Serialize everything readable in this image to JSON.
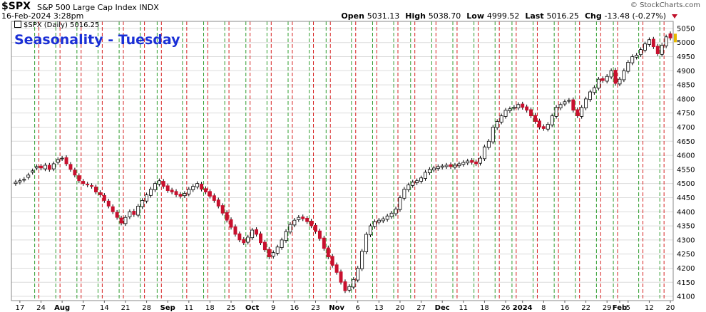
{
  "header": {
    "symbol": "$SPX",
    "full_name": "S&P 500 Large Cap Index  INDX",
    "datetime": "16-Feb-2024 3:28pm",
    "copyright": "© StockCharts.com",
    "ohlc": [
      {
        "label": "Open",
        "value": "5031.13"
      },
      {
        "label": "High",
        "value": "5038.70"
      },
      {
        "label": "Low",
        "value": "4999.52"
      },
      {
        "label": "Last",
        "value": "5016.25"
      },
      {
        "label": "Chg",
        "value": "-13.48 (-0.27%)"
      }
    ],
    "legend": "$SPX (Daily) 5016.25",
    "annotation": "Seasonality - Tuesday"
  },
  "colors": {
    "up_candle": "#ffffff",
    "down_candle": "#c8102e",
    "wick": "#000000",
    "green_line": "#2e9c2e",
    "red_line": "#d62020",
    "grid": "#dcdcdc",
    "annotation": "#1a2fd6"
  },
  "chart_data": {
    "type": "candlestick",
    "y_axis": {
      "position": "right",
      "range": [
        4085,
        5075
      ],
      "ticks": [
        4100,
        4150,
        4200,
        4250,
        4300,
        4350,
        4400,
        4450,
        4500,
        4550,
        4600,
        4650,
        4700,
        4750,
        4800,
        4850,
        4900,
        4950,
        5000,
        5050
      ]
    },
    "x_tick_labels": [
      "17",
      "24",
      "Aug",
      "7",
      "14",
      "21",
      "28",
      "Sep",
      "11",
      "18",
      "25",
      "Oct",
      "9",
      "16",
      "23",
      "Nov",
      "6",
      "13",
      "20",
      "27",
      "Dec",
      "11",
      "18",
      "26",
      "2024",
      "8",
      "16",
      "22",
      "29",
      "Feb",
      "5",
      "12",
      "20"
    ],
    "x_tick_bar_index": [
      1,
      6,
      11,
      16,
      21,
      26,
      31,
      36,
      41,
      46,
      51,
      56,
      61,
      66,
      71,
      76,
      81,
      86,
      91,
      96,
      101,
      106,
      111,
      116,
      120,
      125,
      130,
      135,
      140,
      143,
      145,
      150,
      155
    ],
    "vertical_lines": {
      "green_before_bar_index": [
        5,
        10,
        15,
        20,
        25,
        30,
        34,
        40,
        45,
        50,
        55,
        60,
        65,
        70,
        74,
        80,
        85,
        90,
        94,
        99,
        104,
        109,
        114,
        118,
        123,
        128,
        133,
        138,
        142,
        148,
        153
      ],
      "red_after_bar_index": [
        5,
        10,
        15,
        20,
        25,
        30,
        34,
        40,
        45,
        50,
        55,
        60,
        65,
        70,
        74,
        80,
        85,
        90,
        94,
        99,
        104,
        109,
        114,
        118,
        123,
        128,
        133,
        138,
        142,
        148,
        153
      ]
    },
    "close": [
      4505,
      4510,
      4515,
      4530,
      4545,
      4560,
      4555,
      4565,
      4550,
      4570,
      4585,
      4590,
      4570,
      4550,
      4530,
      4510,
      4500,
      4495,
      4490,
      4470,
      4460,
      4440,
      4420,
      4400,
      4380,
      4360,
      4380,
      4400,
      4390,
      4420,
      4440,
      4460,
      4480,
      4500,
      4510,
      4490,
      4475,
      4470,
      4460,
      4455,
      4465,
      4480,
      4490,
      4500,
      4480,
      4470,
      4455,
      4440,
      4420,
      4395,
      4370,
      4345,
      4320,
      4300,
      4290,
      4310,
      4335,
      4320,
      4290,
      4265,
      4240,
      4255,
      4275,
      4300,
      4330,
      4355,
      4370,
      4380,
      4375,
      4365,
      4350,
      4330,
      4305,
      4270,
      4240,
      4210,
      4185,
      4150,
      4120,
      4135,
      4160,
      4200,
      4260,
      4320,
      4350,
      4365,
      4370,
      4375,
      4385,
      4395,
      4410,
      4450,
      4480,
      4495,
      4505,
      4510,
      4520,
      4540,
      4550,
      4555,
      4560,
      4562,
      4565,
      4560,
      4565,
      4570,
      4575,
      4580,
      4575,
      4570,
      4590,
      4630,
      4650,
      4700,
      4720,
      4740,
      4760,
      4765,
      4770,
      4780,
      4770,
      4760,
      4740,
      4720,
      4700,
      4695,
      4710,
      4740,
      4770,
      4780,
      4790,
      4795,
      4760,
      4740,
      4770,
      4800,
      4825,
      4840,
      4870,
      4865,
      4880,
      4900,
      4855,
      4870,
      4900,
      4930,
      4950,
      4955,
      4975,
      4995,
      5010,
      4985,
      4960,
      4990,
      5020,
      5016
    ],
    "open": [
      4500,
      4505,
      4512,
      4522,
      4540,
      4555,
      4562,
      4552,
      4565,
      4552,
      4575,
      4588,
      4592,
      4568,
      4548,
      4528,
      4508,
      4498,
      4493,
      4488,
      4468,
      4458,
      4438,
      4418,
      4398,
      4378,
      4358,
      4382,
      4402,
      4388,
      4418,
      4438,
      4458,
      4478,
      4498,
      4508,
      4492,
      4477,
      4472,
      4462,
      4457,
      4463,
      4478,
      4488,
      4498,
      4482,
      4472,
      4457,
      4442,
      4422,
      4397,
      4372,
      4347,
      4322,
      4302,
      4292,
      4308,
      4337,
      4322,
      4292,
      4267,
      4242,
      4253,
      4273,
      4298,
      4328,
      4353,
      4372,
      4382,
      4377,
      4367,
      4352,
      4332,
      4307,
      4272,
      4242,
      4212,
      4187,
      4152,
      4122,
      4133,
      4158,
      4198,
      4258,
      4318,
      4348,
      4363,
      4368,
      4373,
      4383,
      4393,
      4408,
      4448,
      4478,
      4493,
      4503,
      4508,
      4518,
      4538,
      4548,
      4553,
      4558,
      4560,
      4567,
      4558,
      4563,
      4568,
      4573,
      4582,
      4577,
      4572,
      4588,
      4628,
      4648,
      4698,
      4718,
      4738,
      4758,
      4767,
      4768,
      4782,
      4772,
      4762,
      4742,
      4722,
      4702,
      4693,
      4708,
      4738,
      4768,
      4782,
      4792,
      4797,
      4762,
      4738,
      4768,
      4798,
      4823,
      4838,
      4872,
      4863,
      4878,
      4902,
      4853,
      4868,
      4898,
      4928,
      4948,
      4957,
      4973,
      4993,
      5012,
      4987,
      4958,
      4988,
      5031
    ]
  }
}
